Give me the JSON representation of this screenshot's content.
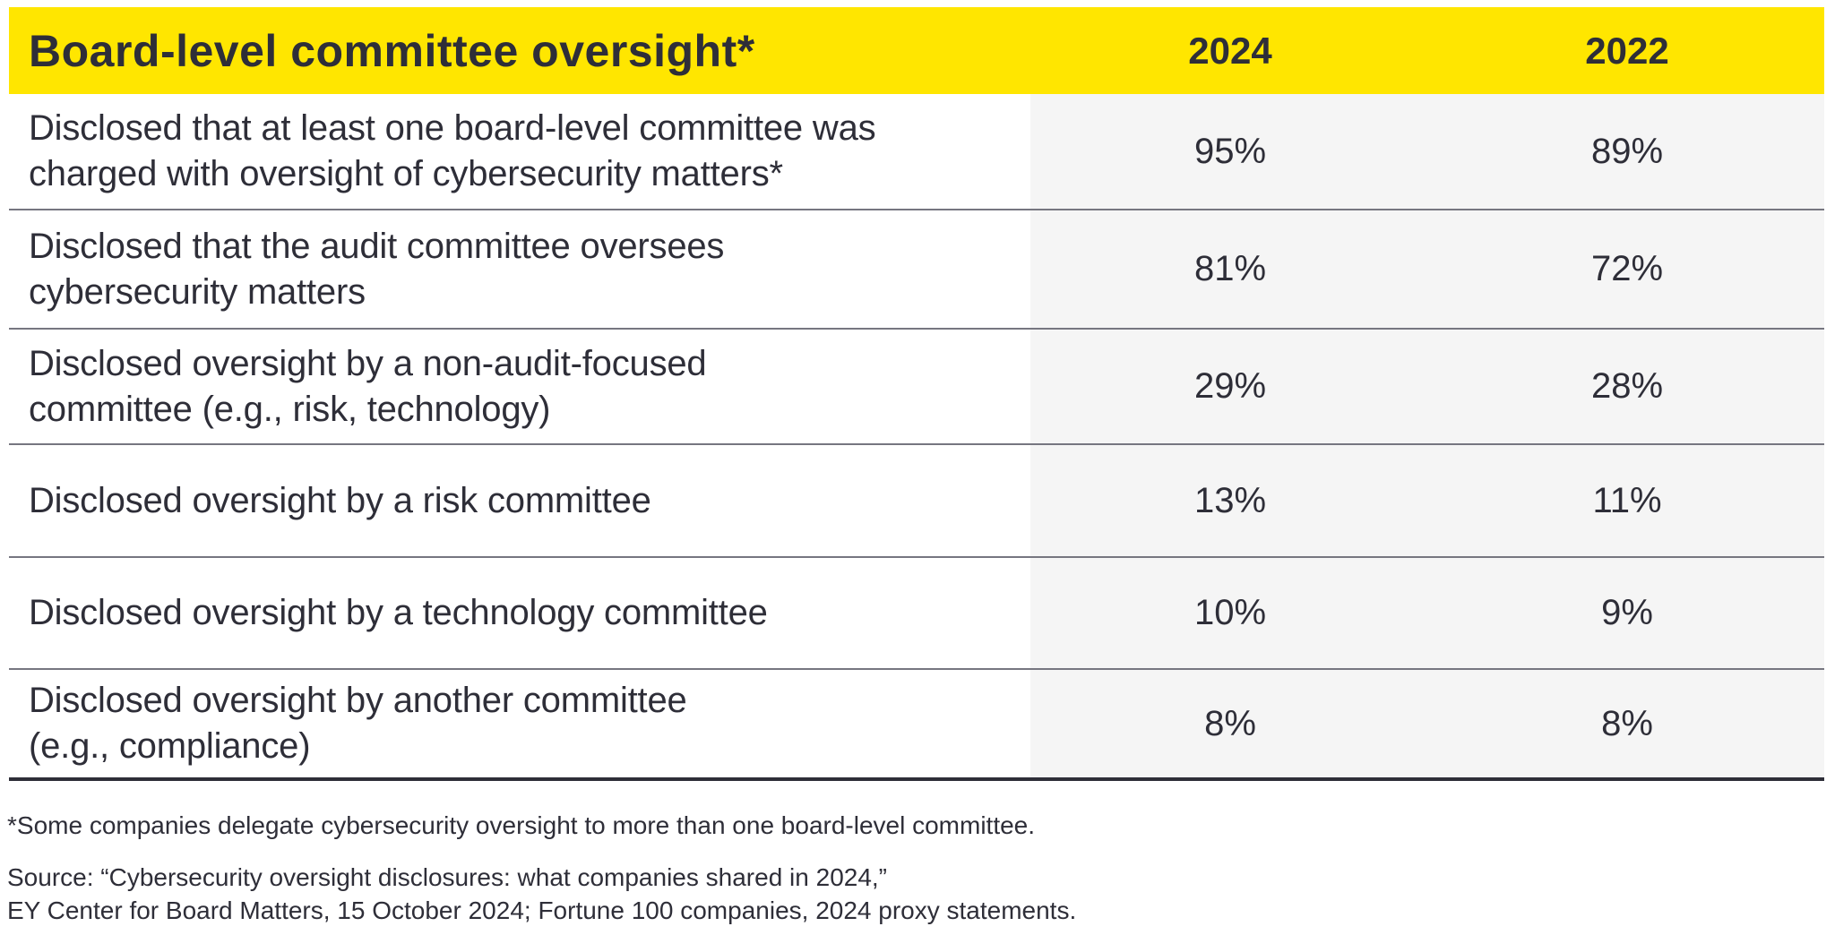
{
  "chart_data": {
    "type": "table",
    "title": "Board-level committee oversight*",
    "categories": [
      "Disclosed that at least one board-level committee was charged with oversight of cybersecurity matters*",
      "Disclosed that the audit committee oversees cybersecurity matters",
      "Disclosed oversight by a non-audit-focused committee (e.g., risk, technology)",
      "Disclosed oversight by a risk committee",
      "Disclosed oversight by a technology committee",
      "Disclosed oversight by another committee (e.g., compliance)"
    ],
    "series": [
      {
        "name": "2024",
        "values": [
          95,
          81,
          29,
          13,
          10,
          8
        ]
      },
      {
        "name": "2022",
        "values": [
          89,
          72,
          28,
          11,
          9,
          8
        ]
      }
    ],
    "unit": "%"
  },
  "table": {
    "header": {
      "title": "Board-level committee oversight*",
      "col_2024": "2024",
      "col_2022": "2022"
    },
    "rows": [
      {
        "lines": [
          "Disclosed that at least one board-level committee was",
          "charged with oversight of cybersecurity matters*"
        ],
        "v2024": "95%",
        "v2022": "89%"
      },
      {
        "lines": [
          "Disclosed that the audit committee oversees",
          "cybersecurity matters"
        ],
        "v2024": "81%",
        "v2022": "72%"
      },
      {
        "lines": [
          "Disclosed oversight by a non-audit-focused",
          "committee (e.g., risk, technology)"
        ],
        "v2024": "29%",
        "v2022": "28%"
      },
      {
        "lines": [
          "Disclosed oversight by a risk committee"
        ],
        "v2024": "13%",
        "v2022": "11%"
      },
      {
        "lines": [
          "Disclosed oversight by a technology committee"
        ],
        "v2024": "10%",
        "v2022": "9%"
      },
      {
        "lines": [
          "Disclosed oversight by another committee",
          "(e.g., compliance)"
        ],
        "v2024": "8%",
        "v2022": "8%"
      }
    ]
  },
  "footnotes": {
    "asterisk": "*Some companies delegate cybersecurity oversight to more than one board-level committee.",
    "source_line1": "Source: “Cybersecurity oversight disclosures: what companies shared in 2024,”",
    "source_line2": "EY Center for Board Matters, 15 October 2024; Fortune 100 companies, 2024 proxy statements."
  },
  "colors": {
    "header_bg": "#FFE600",
    "text": "#2E2E38",
    "value_col_bg": "#F5F5F5",
    "row_divider": "#767680",
    "table_bottom_border": "#2E2E38"
  }
}
